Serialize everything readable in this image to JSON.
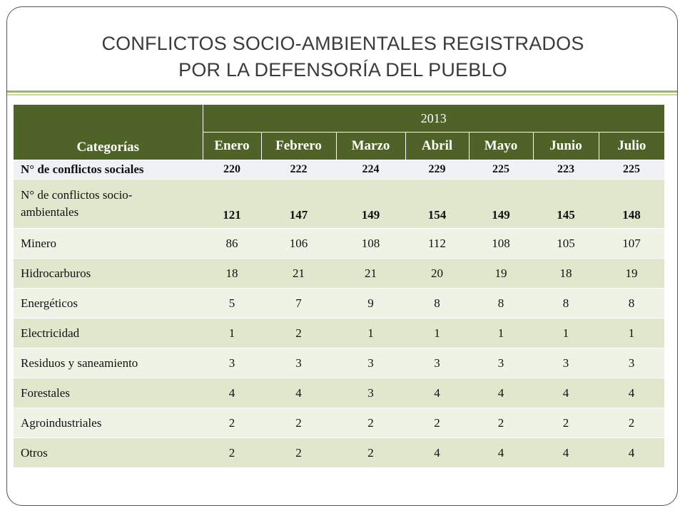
{
  "slide": {
    "title_line1": "CONFLICTOS SOCIO-AMBIENTALES REGISTRADOS",
    "title_line2": "POR LA DEFENSORÍA DEL PUEBLO"
  },
  "table": {
    "header_category": "Categorías",
    "year": "2013",
    "months": [
      "Enero",
      "Febrero",
      "Marzo",
      "Abril",
      "Mayo",
      "Junio",
      "Julio"
    ],
    "rows": [
      {
        "label": "N° de conflictos sociales",
        "values": [
          "220",
          "222",
          "224",
          "229",
          "225",
          "223",
          "225"
        ]
      },
      {
        "label_line1": "N° de conflictos socio-",
        "label_line2": "ambientales",
        "values": [
          "121",
          "147",
          "149",
          "154",
          "149",
          "145",
          "148"
        ]
      },
      {
        "label": "Minero",
        "values": [
          "86",
          "106",
          "108",
          "112",
          "108",
          "105",
          "107"
        ]
      },
      {
        "label": "Hidrocarburos",
        "values": [
          "18",
          "21",
          "21",
          "20",
          "19",
          "18",
          "19"
        ]
      },
      {
        "label": "Energéticos",
        "values": [
          "5",
          "7",
          "9",
          "8",
          "8",
          "8",
          "8"
        ]
      },
      {
        "label": "Electricidad",
        "values": [
          "1",
          "2",
          "1",
          "1",
          "1",
          "1",
          "1"
        ]
      },
      {
        "label": "Residuos y saneamiento",
        "values": [
          "3",
          "3",
          "3",
          "3",
          "3",
          "3",
          "3"
        ]
      },
      {
        "label": "Forestales",
        "values": [
          "4",
          "4",
          "3",
          "4",
          "4",
          "4",
          "4"
        ]
      },
      {
        "label": "Agroindustriales",
        "values": [
          "2",
          "2",
          "2",
          "2",
          "2",
          "2",
          "2"
        ]
      },
      {
        "label": "Otros",
        "values": [
          "2",
          "2",
          "2",
          "4",
          "4",
          "4",
          "4"
        ]
      }
    ]
  },
  "colors": {
    "header_bg": "#4f6228",
    "row_dark": "#dfe7cd",
    "row_light": "#eff3e6",
    "first_row": "#eef2f7",
    "accent_rule": "#9bbb59"
  }
}
